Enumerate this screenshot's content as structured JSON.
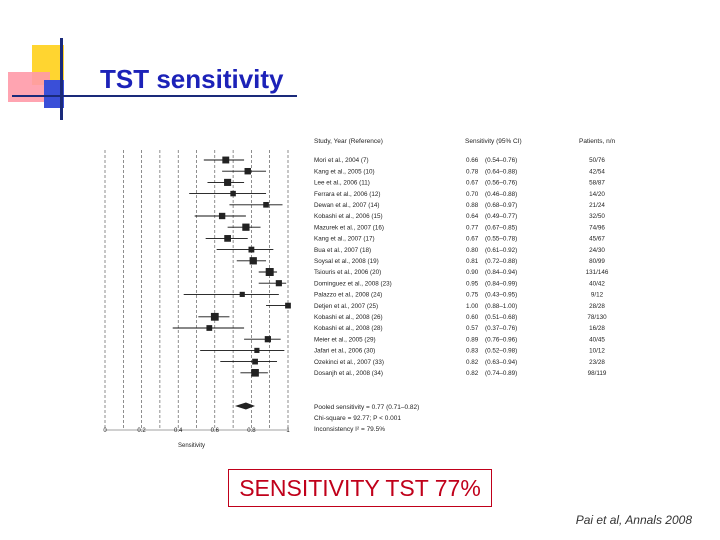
{
  "header": {
    "title": "TST sensitivity"
  },
  "summary_box": {
    "text": "SENSITIVITY TST 77%"
  },
  "citation": {
    "text": "Pai  et al, Annals 2008"
  },
  "colors": {
    "title": "#1c22b8",
    "box": "#c0001a",
    "marker": "#222222"
  },
  "chart_data": {
    "type": "forest",
    "headers": {
      "study": "Study, Year (Reference)",
      "sensitivity": "Sensitivity (95% CI)",
      "patients": "Patients, n/n"
    },
    "xlabel": "Sensitivity",
    "xlim": [
      0,
      1
    ],
    "ticks": [
      "0",
      "0.2",
      "0.4",
      "0.6",
      "0.8",
      "1"
    ],
    "studies": [
      {
        "name": "Mori et al., 2004 (7)",
        "est": 0.66,
        "lo": 0.54,
        "hi": 0.76,
        "ci": "(0.54–0.76)",
        "n": "50/76"
      },
      {
        "name": "Kang et al., 2005 (10)",
        "est": 0.78,
        "lo": 0.64,
        "hi": 0.88,
        "ci": "(0.64–0.88)",
        "n": "42/54"
      },
      {
        "name": "Lee et al., 2006 (11)",
        "est": 0.67,
        "lo": 0.56,
        "hi": 0.76,
        "ci": "(0.56–0.76)",
        "n": "58/87"
      },
      {
        "name": "Ferrara et al., 2006 (12)",
        "est": 0.7,
        "lo": 0.46,
        "hi": 0.88,
        "ci": "(0.46–0.88)",
        "n": "14/20"
      },
      {
        "name": "Dewan et al., 2007 (14)",
        "est": 0.88,
        "lo": 0.68,
        "hi": 0.97,
        "ci": "(0.68–0.97)",
        "n": "21/24"
      },
      {
        "name": "Kobashi et al., 2006 (15)",
        "est": 0.64,
        "lo": 0.49,
        "hi": 0.77,
        "ci": "(0.49–0.77)",
        "n": "32/50"
      },
      {
        "name": "Mazurek et al., 2007 (16)",
        "est": 0.77,
        "lo": 0.67,
        "hi": 0.85,
        "ci": "(0.67–0.85)",
        "n": "74/96"
      },
      {
        "name": "Kang et al., 2007 (17)",
        "est": 0.67,
        "lo": 0.55,
        "hi": 0.78,
        "ci": "(0.55–0.78)",
        "n": "45/67"
      },
      {
        "name": "Bua et al., 2007 (18)",
        "est": 0.8,
        "lo": 0.61,
        "hi": 0.92,
        "ci": "(0.61–0.92)",
        "n": "24/30"
      },
      {
        "name": "Soysal et al., 2008 (19)",
        "est": 0.81,
        "lo": 0.72,
        "hi": 0.88,
        "ci": "(0.72–0.88)",
        "n": "80/99"
      },
      {
        "name": "Tsiouris et al., 2006 (20)",
        "est": 0.9,
        "lo": 0.84,
        "hi": 0.94,
        "ci": "(0.84–0.94)",
        "n": "131/146"
      },
      {
        "name": "Dominguez et al., 2008 (23)",
        "est": 0.95,
        "lo": 0.84,
        "hi": 0.99,
        "ci": "(0.84–0.99)",
        "n": "40/42"
      },
      {
        "name": "Palazzo et al., 2008 (24)",
        "est": 0.75,
        "lo": 0.43,
        "hi": 0.95,
        "ci": "(0.43–0.95)",
        "n": "9/12"
      },
      {
        "name": "Detjen et al., 2007 (25)",
        "est": 1.0,
        "lo": 0.88,
        "hi": 1.0,
        "ci": "(0.88–1.00)",
        "n": "28/28"
      },
      {
        "name": "Kobashi et al., 2008 (26)",
        "est": 0.6,
        "lo": 0.51,
        "hi": 0.68,
        "ci": "(0.51–0.68)",
        "n": "78/130"
      },
      {
        "name": "Kobashi et al., 2008 (28)",
        "est": 0.57,
        "lo": 0.37,
        "hi": 0.76,
        "ci": "(0.37–0.76)",
        "n": "16/28"
      },
      {
        "name": "Meier et al., 2005 (29)",
        "est": 0.89,
        "lo": 0.76,
        "hi": 0.96,
        "ci": "(0.76–0.96)",
        "n": "40/45"
      },
      {
        "name": "Jafari et al., 2006 (30)",
        "est": 0.83,
        "lo": 0.52,
        "hi": 0.98,
        "ci": "(0.52–0.98)",
        "n": "10/12"
      },
      {
        "name": "Ozekinci et al., 2007 (33)",
        "est": 0.82,
        "lo": 0.63,
        "hi": 0.94,
        "ci": "(0.63–0.94)",
        "n": "23/28"
      },
      {
        "name": "Dosanjh et al., 2008 (34)",
        "est": 0.82,
        "lo": 0.74,
        "hi": 0.89,
        "ci": "(0.74–0.89)",
        "n": "98/119"
      }
    ],
    "pooled": {
      "est": 0.77,
      "lo": 0.71,
      "hi": 0.82
    },
    "footer": [
      "Pooled sensitivity = 0.77 (0.71–0.82)",
      "Chi-square = 92.77; P < 0.001",
      "Inconsistency I² = 79.5%"
    ]
  }
}
